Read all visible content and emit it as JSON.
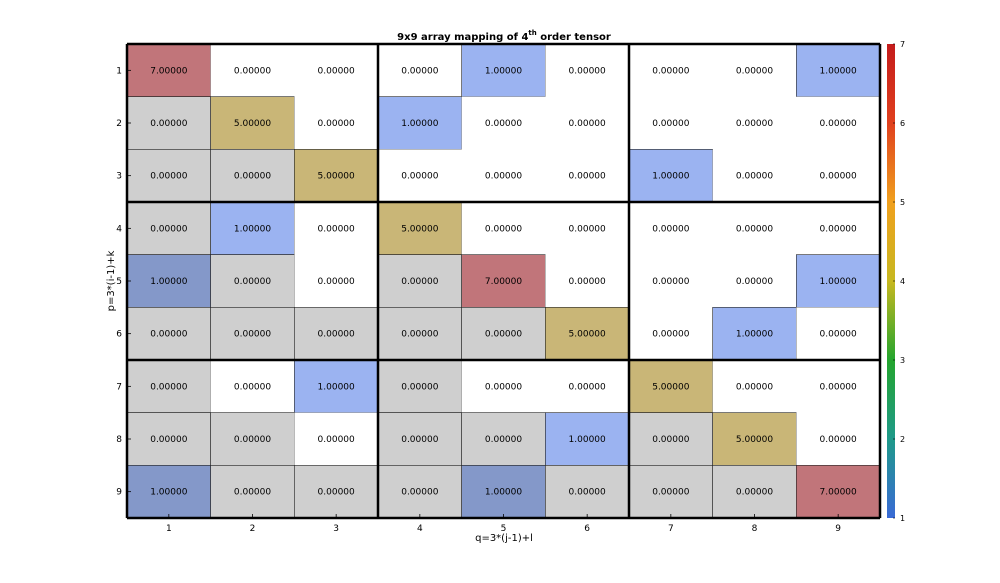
{
  "chart_data": {
    "type": "heatmap",
    "title": "9x9 array mapping of 4",
    "title_superscript": "th",
    "title_suffix": " order tensor",
    "xlabel": "q=3*(j-1)+l",
    "ylabel": "p=3*(i-1)+k",
    "x_ticks": [
      "1",
      "2",
      "3",
      "4",
      "5",
      "6",
      "7",
      "8",
      "9"
    ],
    "y_ticks": [
      "1",
      "2",
      "3",
      "4",
      "5",
      "6",
      "7",
      "8",
      "9"
    ],
    "values": [
      [
        7,
        0,
        0,
        0,
        1,
        0,
        0,
        0,
        1
      ],
      [
        0,
        5,
        0,
        1,
        0,
        0,
        0,
        0,
        0
      ],
      [
        0,
        0,
        5,
        0,
        0,
        0,
        1,
        0,
        0
      ],
      [
        0,
        1,
        0,
        5,
        0,
        0,
        0,
        0,
        0
      ],
      [
        1,
        0,
        0,
        0,
        7,
        0,
        0,
        0,
        1
      ],
      [
        0,
        0,
        0,
        0,
        0,
        5,
        0,
        1,
        0
      ],
      [
        0,
        0,
        1,
        0,
        0,
        0,
        5,
        0,
        0
      ],
      [
        0,
        0,
        0,
        0,
        0,
        1,
        0,
        5,
        0
      ],
      [
        1,
        0,
        0,
        0,
        1,
        0,
        0,
        0,
        7
      ]
    ],
    "labels": [
      [
        "7.00000",
        "0.00000",
        "0.00000",
        "0.00000",
        "1.00000",
        "0.00000",
        "0.00000",
        "0.00000",
        "1.00000"
      ],
      [
        "0.00000",
        "5.00000",
        "0.00000",
        "1.00000",
        "0.00000",
        "0.00000",
        "0.00000",
        "0.00000",
        "0.00000"
      ],
      [
        "0.00000",
        "0.00000",
        "5.00000",
        "0.00000",
        "0.00000",
        "0.00000",
        "1.00000",
        "0.00000",
        "0.00000"
      ],
      [
        "0.00000",
        "1.00000",
        "0.00000",
        "5.00000",
        "0.00000",
        "0.00000",
        "0.00000",
        "0.00000",
        "0.00000"
      ],
      [
        "1.00000",
        "0.00000",
        "0.00000",
        "0.00000",
        "7.00000",
        "0.00000",
        "0.00000",
        "0.00000",
        "1.00000"
      ],
      [
        "0.00000",
        "0.00000",
        "0.00000",
        "0.00000",
        "0.00000",
        "5.00000",
        "0.00000",
        "1.00000",
        "0.00000"
      ],
      [
        "0.00000",
        "0.00000",
        "1.00000",
        "0.00000",
        "0.00000",
        "0.00000",
        "5.00000",
        "0.00000",
        "0.00000"
      ],
      [
        "0.00000",
        "0.00000",
        "0.00000",
        "0.00000",
        "0.00000",
        "1.00000",
        "0.00000",
        "5.00000",
        "0.00000"
      ],
      [
        "1.00000",
        "0.00000",
        "0.00000",
        "0.00000",
        "1.00000",
        "0.00000",
        "0.00000",
        "0.00000",
        "7.00000"
      ]
    ],
    "cell_colors": [
      [
        "#c1757a",
        "#ffffff",
        "#ffffff",
        "#ffffff",
        "#9bb3f1",
        "#ffffff",
        "#ffffff",
        "#ffffff",
        "#9bb3f1"
      ],
      [
        "#cfcfcf",
        "#c9b677",
        "#ffffff",
        "#9bb3f1",
        "#ffffff",
        "#ffffff",
        "#ffffff",
        "#ffffff",
        "#ffffff"
      ],
      [
        "#cfcfcf",
        "#cfcfcf",
        "#c9b677",
        "#ffffff",
        "#ffffff",
        "#ffffff",
        "#9bb3f1",
        "#ffffff",
        "#ffffff"
      ],
      [
        "#cfcfcf",
        "#9bb3f1",
        "#ffffff",
        "#c9b677",
        "#ffffff",
        "#ffffff",
        "#ffffff",
        "#ffffff",
        "#ffffff"
      ],
      [
        "#8498c9",
        "#cfcfcf",
        "#ffffff",
        "#cfcfcf",
        "#c1757a",
        "#ffffff",
        "#ffffff",
        "#ffffff",
        "#9bb3f1"
      ],
      [
        "#cfcfcf",
        "#cfcfcf",
        "#cfcfcf",
        "#cfcfcf",
        "#cfcfcf",
        "#c9b677",
        "#ffffff",
        "#9bb3f1",
        "#ffffff"
      ],
      [
        "#cfcfcf",
        "#ffffff",
        "#9bb3f1",
        "#cfcfcf",
        "#ffffff",
        "#ffffff",
        "#c9b677",
        "#ffffff",
        "#ffffff"
      ],
      [
        "#cfcfcf",
        "#cfcfcf",
        "#ffffff",
        "#cfcfcf",
        "#cfcfcf",
        "#9bb3f1",
        "#cfcfcf",
        "#c9b677",
        "#ffffff"
      ],
      [
        "#8498c9",
        "#cfcfcf",
        "#cfcfcf",
        "#cfcfcf",
        "#8498c9",
        "#cfcfcf",
        "#cfcfcf",
        "#cfcfcf",
        "#c1757a"
      ]
    ],
    "block_size": 3,
    "colorbar": {
      "ticks": [
        "1",
        "2",
        "3",
        "4",
        "5",
        "6",
        "7"
      ],
      "range": [
        1,
        7
      ],
      "colors": [
        "#3a6ad6",
        "#1f9a8a",
        "#24a52e",
        "#c7b820",
        "#f0a01e",
        "#e0401e",
        "#c41c1c"
      ]
    },
    "grid": true
  }
}
